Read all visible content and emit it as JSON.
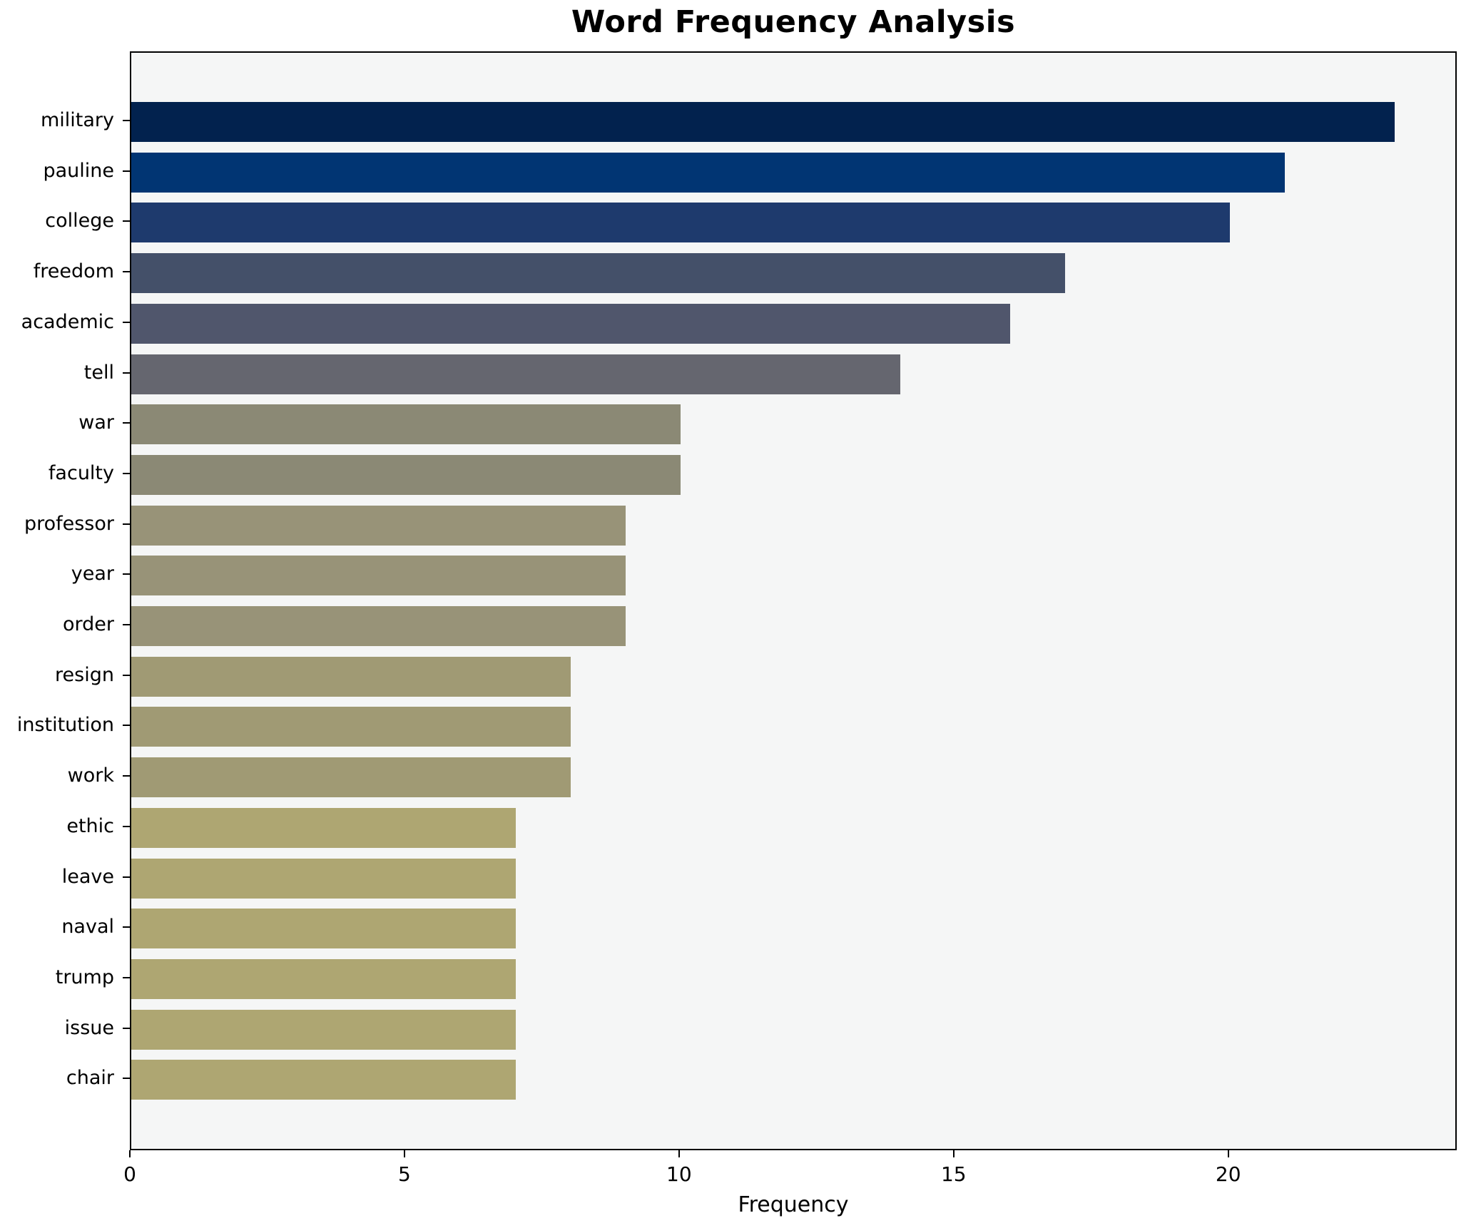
{
  "title": "Word Frequency Analysis",
  "xlabel": "Frequency",
  "colors": {
    "figure_bg": "#ffffff",
    "plot_bg": "#f5f6f6",
    "spine": "#000000",
    "text": "#000000"
  },
  "chart_data": {
    "type": "bar",
    "orientation": "horizontal",
    "title": "Word Frequency Analysis",
    "xlabel": "Frequency",
    "ylabel": "",
    "grid": false,
    "legend": false,
    "xlim": [
      0,
      24.16
    ],
    "xticks": [
      0,
      5,
      10,
      15,
      20
    ],
    "categories": [
      "military",
      "pauline",
      "college",
      "freedom",
      "academic",
      "tell",
      "war",
      "faculty",
      "professor",
      "year",
      "order",
      "resign",
      "institution",
      "work",
      "ethic",
      "leave",
      "naval",
      "trump",
      "issue",
      "chair"
    ],
    "values": [
      23,
      21,
      20,
      17,
      16,
      14,
      10,
      10,
      9,
      9,
      9,
      8,
      8,
      8,
      7,
      7,
      7,
      7,
      7,
      7
    ],
    "bar_colors": [
      "#02224e",
      "#013573",
      "#1e3a6d",
      "#445069",
      "#50566c",
      "#65666f",
      "#8b8975",
      "#8b8975",
      "#989378",
      "#989378",
      "#989378",
      "#a09a74",
      "#a09a74",
      "#a09a74",
      "#aea672",
      "#aea672",
      "#aea672",
      "#aea672",
      "#aea672",
      "#aea672"
    ]
  }
}
